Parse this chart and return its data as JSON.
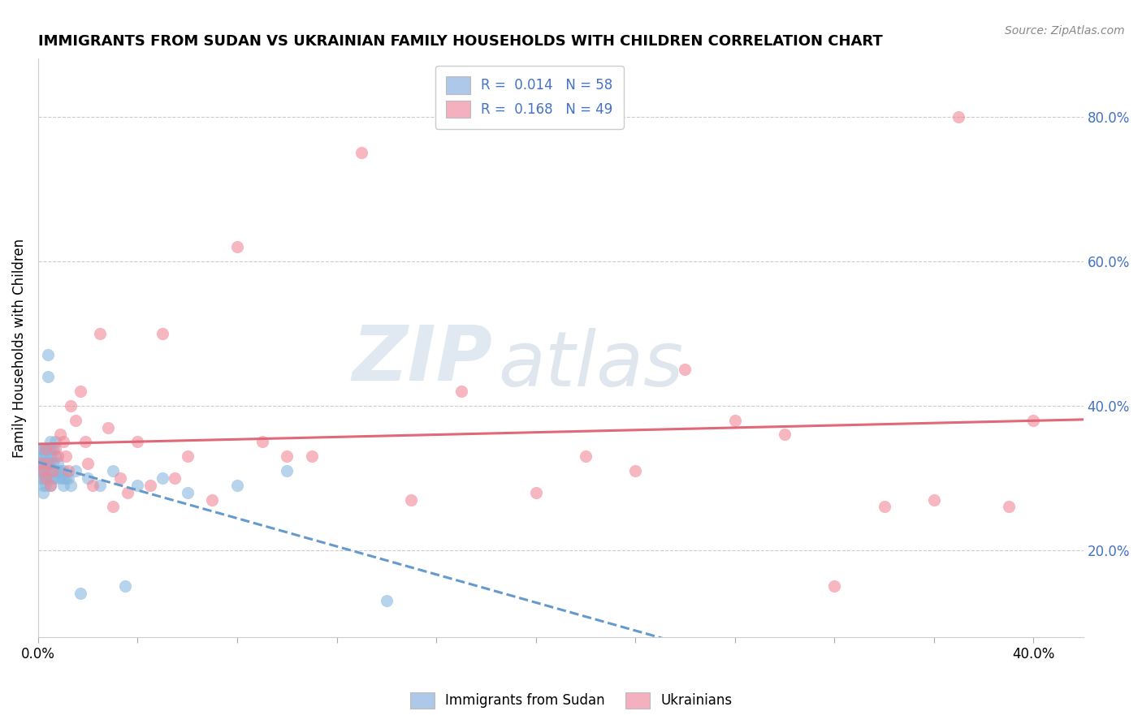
{
  "title": "IMMIGRANTS FROM SUDAN VS UKRAINIAN FAMILY HOUSEHOLDS WITH CHILDREN CORRELATION CHART",
  "source": "Source: ZipAtlas.com",
  "ylabel": "Family Households with Children",
  "xlim": [
    0.0,
    0.42
  ],
  "ylim": [
    0.08,
    0.88
  ],
  "y_ticks": [
    0.2,
    0.4,
    0.6,
    0.8
  ],
  "sudan_R": "0.014",
  "sudan_N": "58",
  "ukraine_R": "0.168",
  "ukraine_N": "49",
  "sudan_color": "#adc8e8",
  "ukraine_color": "#f5b0c0",
  "sudan_scatter_color": "#88b8e0",
  "ukraine_scatter_color": "#f08898",
  "trendline_sudan_color": "#6699cc",
  "trendline_ukraine_color": "#e06878",
  "background_color": "#ffffff",
  "watermark_zip": "ZIP",
  "watermark_atlas": "atlas",
  "legend_label_sudan": "Immigrants from Sudan",
  "legend_label_ukraine": "Ukrainians",
  "sudan_x": [
    0.001,
    0.001,
    0.001,
    0.001,
    0.001,
    0.002,
    0.002,
    0.002,
    0.002,
    0.002,
    0.002,
    0.002,
    0.003,
    0.003,
    0.003,
    0.003,
    0.003,
    0.003,
    0.004,
    0.004,
    0.004,
    0.004,
    0.004,
    0.005,
    0.005,
    0.005,
    0.005,
    0.005,
    0.005,
    0.006,
    0.006,
    0.006,
    0.007,
    0.007,
    0.007,
    0.007,
    0.008,
    0.008,
    0.009,
    0.009,
    0.01,
    0.01,
    0.01,
    0.011,
    0.012,
    0.013,
    0.015,
    0.017,
    0.02,
    0.025,
    0.03,
    0.035,
    0.04,
    0.05,
    0.06,
    0.08,
    0.1,
    0.14
  ],
  "sudan_y": [
    0.34,
    0.33,
    0.32,
    0.31,
    0.3,
    0.34,
    0.33,
    0.32,
    0.31,
    0.3,
    0.29,
    0.28,
    0.34,
    0.33,
    0.32,
    0.31,
    0.3,
    0.29,
    0.47,
    0.44,
    0.34,
    0.32,
    0.3,
    0.35,
    0.34,
    0.33,
    0.32,
    0.31,
    0.29,
    0.34,
    0.32,
    0.3,
    0.35,
    0.33,
    0.31,
    0.3,
    0.32,
    0.31,
    0.31,
    0.3,
    0.31,
    0.3,
    0.29,
    0.3,
    0.3,
    0.29,
    0.31,
    0.14,
    0.3,
    0.29,
    0.31,
    0.15,
    0.29,
    0.3,
    0.28,
    0.29,
    0.31,
    0.13
  ],
  "ukraine_x": [
    0.001,
    0.002,
    0.003,
    0.003,
    0.004,
    0.005,
    0.006,
    0.007,
    0.008,
    0.009,
    0.01,
    0.011,
    0.012,
    0.013,
    0.015,
    0.017,
    0.019,
    0.02,
    0.022,
    0.025,
    0.028,
    0.03,
    0.033,
    0.036,
    0.04,
    0.045,
    0.05,
    0.055,
    0.06,
    0.07,
    0.08,
    0.09,
    0.1,
    0.11,
    0.13,
    0.15,
    0.17,
    0.2,
    0.22,
    0.24,
    0.26,
    0.28,
    0.3,
    0.32,
    0.34,
    0.36,
    0.37,
    0.39,
    0.4
  ],
  "ukraine_y": [
    0.32,
    0.31,
    0.34,
    0.3,
    0.32,
    0.29,
    0.31,
    0.34,
    0.33,
    0.36,
    0.35,
    0.33,
    0.31,
    0.4,
    0.38,
    0.42,
    0.35,
    0.32,
    0.29,
    0.5,
    0.37,
    0.26,
    0.3,
    0.28,
    0.35,
    0.29,
    0.5,
    0.3,
    0.33,
    0.27,
    0.62,
    0.35,
    0.33,
    0.33,
    0.75,
    0.27,
    0.42,
    0.28,
    0.33,
    0.31,
    0.45,
    0.38,
    0.36,
    0.15,
    0.26,
    0.27,
    0.8,
    0.26,
    0.38
  ]
}
